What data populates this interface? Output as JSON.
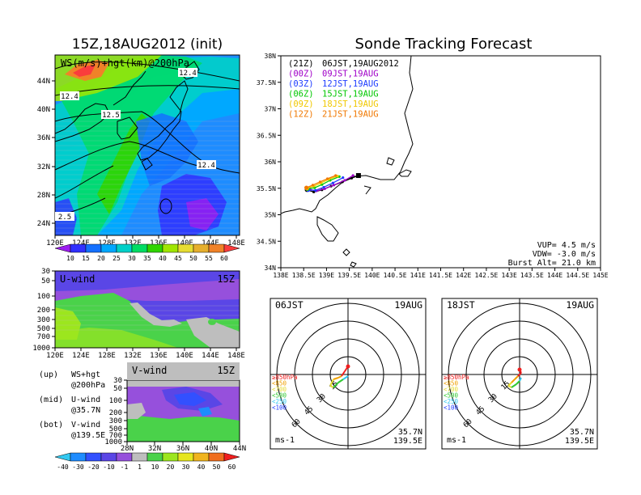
{
  "chart_data": [
    {
      "type": "heatmap",
      "title": "15Z,18AUG2012 (init)",
      "panel_label": "WS(m/s)+hgt(km)@200hPa",
      "x_ticks": [
        "120E",
        "124E",
        "128E",
        "132E",
        "136E",
        "140E",
        "144E",
        "148E"
      ],
      "y_ticks": [
        "24N",
        "28N",
        "32N",
        "36N",
        "40N",
        "44N"
      ],
      "contour_labels": [
        "12.4",
        "12.4",
        "12.5",
        "12.4",
        "2.5"
      ],
      "colorbar": {
        "labels": [
          "10",
          "15",
          "20",
          "25",
          "30",
          "35",
          "40",
          "45",
          "50",
          "55",
          "60"
        ],
        "colors": [
          "#9c1cf0",
          "#3030ff",
          "#1470ff",
          "#00a8ff",
          "#00d0c8",
          "#00dc64",
          "#30d400",
          "#a0e600",
          "#e6dc32",
          "#e6af2d",
          "#f08228",
          "#fa3c3c"
        ]
      }
    },
    {
      "type": "heatmap",
      "panel_label": "U-wind",
      "time_label": "15Z",
      "y_ticks": [
        "30",
        "50",
        "100",
        "200",
        "300",
        "500",
        "700",
        "1000"
      ],
      "x_ticks": [
        "120E",
        "124E",
        "128E",
        "132E",
        "136E",
        "140E",
        "144E",
        "148E"
      ]
    },
    {
      "type": "heatmap",
      "panel_label": "V-wind",
      "time_label": "15Z",
      "y_ticks": [
        "30",
        "50",
        "100",
        "200",
        "300",
        "500",
        "700",
        "1000"
      ],
      "x_ticks": [
        "28N",
        "32N",
        "36N",
        "40N",
        "44N"
      ],
      "colorbar": {
        "labels": [
          "-40",
          "-30",
          "-20",
          "-10",
          "-1",
          "1",
          "10",
          "20",
          "30",
          "40",
          "50",
          "60"
        ],
        "colors": [
          "#32c8f0",
          "#1e8cff",
          "#3250ff",
          "#5a46e6",
          "#9650dc",
          "#bebebe",
          "#4ad24a",
          "#9ce61e",
          "#e6e61e",
          "#f0b41e",
          "#f06e1e",
          "#f01e1e"
        ]
      }
    },
    {
      "type": "line",
      "title": "Sonde Tracking Forecast",
      "x_ticks": [
        "138E",
        "138.5E",
        "139E",
        "139.5E",
        "140E",
        "140.5E",
        "141E",
        "141.5E",
        "142E",
        "142.5E",
        "143E",
        "143.5E",
        "144E",
        "144.5E",
        "145E"
      ],
      "y_ticks": [
        "34N",
        "34.5N",
        "35N",
        "35.5N",
        "36N",
        "36.5N",
        "37N",
        "37.5N",
        "38N"
      ],
      "xlim": [
        138,
        145
      ],
      "ylim": [
        34,
        38
      ],
      "legend": [
        {
          "code": "(21Z)",
          "time": "06JST,19AUG2012",
          "color": "#000000"
        },
        {
          "code": "(00Z)",
          "time": "09JST,19AUG",
          "color": "#a000c8"
        },
        {
          "code": "(03Z)",
          "time": "12JST,19AUG",
          "color": "#1e3cff"
        },
        {
          "code": "(06Z)",
          "time": "15JST,19AUG",
          "color": "#00c800"
        },
        {
          "code": "(09Z)",
          "time": "18JST,19AUG",
          "color": "#f0c800"
        },
        {
          "code": "(12Z)",
          "time": "21JST,19AUG",
          "color": "#f07800"
        }
      ],
      "series": [
        {
          "x": [
            138.57,
            138.72,
            138.9,
            139.1,
            139.35,
            139.55,
            139.7
          ],
          "y": [
            35.47,
            35.43,
            35.47,
            35.54,
            35.62,
            35.69,
            35.74
          ],
          "color": "#000000"
        },
        {
          "x": [
            138.62,
            138.78,
            138.96,
            139.16,
            139.4,
            139.58
          ],
          "y": [
            35.48,
            35.45,
            35.49,
            35.56,
            35.65,
            35.74
          ],
          "color": "#a000c8"
        },
        {
          "x": [
            138.6,
            138.76,
            138.94,
            139.14,
            139.36
          ],
          "y": [
            35.47,
            35.46,
            35.52,
            35.6,
            35.7
          ],
          "color": "#1e3cff"
        },
        {
          "x": [
            138.58,
            138.74,
            138.9,
            139.08,
            139.28
          ],
          "y": [
            35.49,
            35.51,
            35.57,
            35.65,
            35.72
          ],
          "color": "#00c800"
        },
        {
          "x": [
            138.57,
            138.72,
            138.88,
            139.05,
            139.24
          ],
          "y": [
            35.5,
            35.54,
            35.6,
            35.67,
            35.73
          ],
          "color": "#f0c800"
        },
        {
          "x": [
            138.56,
            138.7,
            138.86,
            139.02,
            139.2
          ],
          "y": [
            35.51,
            35.56,
            35.62,
            35.68,
            35.74
          ],
          "color": "#f07800"
        }
      ],
      "params": [
        "VUP= 4.5 m/s",
        "VDW= -3.0 m/s",
        "Burst Alt= 21.0 km"
      ]
    },
    {
      "type": "scatter",
      "title": "06JST",
      "date": "19AUG",
      "ring_labels": [
        "15",
        "30",
        "45",
        "60"
      ],
      "levels": [
        "≥850hPa",
        "<850",
        "<700",
        "<500",
        "<250",
        "<100"
      ],
      "level_colors": [
        "#f01e1e",
        "#f0a000",
        "#e6dc32",
        "#32c832",
        "#32c8f0",
        "#1e3cff"
      ],
      "location": [
        "35.7N",
        "139.5E"
      ],
      "unit": "ms-1"
    },
    {
      "type": "scatter",
      "title": "18JST",
      "date": "19AUG",
      "ring_labels": [
        "15",
        "30",
        "45",
        "60"
      ],
      "levels": [
        "≥850hPa",
        "<850",
        "<700",
        "<500",
        "<250",
        "<100"
      ],
      "level_colors": [
        "#f01e1e",
        "#f0a000",
        "#e6dc32",
        "#32c832",
        "#32c8f0",
        "#1e3cff"
      ],
      "location": [
        "35.7N",
        "139.5E"
      ],
      "unit": "ms-1"
    }
  ],
  "side_legend": [
    {
      "key": "(up)",
      "line1": "WS+hgt",
      "line2": "@200hPa"
    },
    {
      "key": "(mid)",
      "line1": "U-wind",
      "line2": "@35.7N"
    },
    {
      "key": "(bot)",
      "line1": "V-wind",
      "line2": "@139.5E"
    }
  ]
}
